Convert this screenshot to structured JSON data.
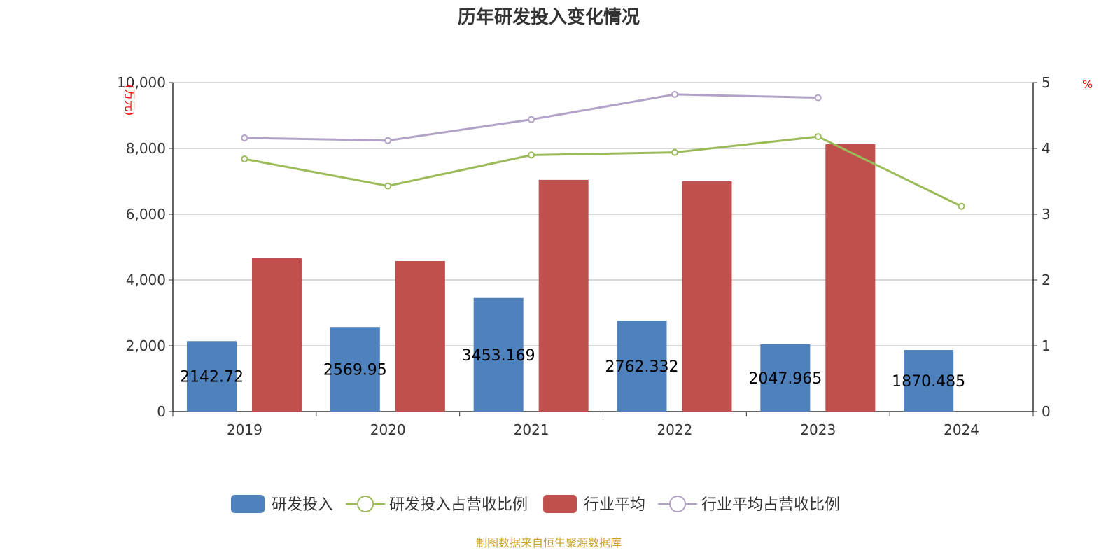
{
  "chart_data": {
    "type": "bar",
    "title": "历年研发投入变化情况",
    "source": "制图数据来自恒生聚源数据库",
    "categories": [
      "2019",
      "2020",
      "2021",
      "2022",
      "2023",
      "2024"
    ],
    "y_left": {
      "label": "(万元)",
      "range": [
        0,
        10000
      ],
      "ticks": [
        0,
        2000,
        4000,
        6000,
        8000,
        10000
      ],
      "tick_labels": [
        "0",
        "2,000",
        "4,000",
        "6,000",
        "8,000",
        "10,000"
      ]
    },
    "y_right": {
      "label": "%",
      "range": [
        0,
        5
      ],
      "ticks": [
        0,
        1,
        2,
        3,
        4,
        5
      ],
      "tick_labels": [
        "0",
        "1",
        "2",
        "3",
        "4",
        "5"
      ]
    },
    "grid": true,
    "legend_position": "bottom",
    "series": [
      {
        "name": "研发投入",
        "kind": "bar",
        "axis": "left",
        "color": "#4f81bd",
        "values": [
          2142.72,
          2569.95,
          3453.169,
          2762.332,
          2047.965,
          1870.485
        ],
        "labels": [
          "2142.72",
          "2569.95",
          "3453.169",
          "2762.332",
          "2047.965",
          "1870.485"
        ]
      },
      {
        "name": "研发投入占营收比例",
        "kind": "line",
        "axis": "right",
        "color": "#9bbb59",
        "values": [
          3.84,
          3.43,
          3.9,
          3.94,
          4.18,
          3.12
        ]
      },
      {
        "name": "行业平均",
        "kind": "bar",
        "axis": "left",
        "color": "#c0504d",
        "values": [
          4660,
          4575,
          7045,
          7000,
          8130,
          null
        ]
      },
      {
        "name": "行业平均占营收比例",
        "kind": "line",
        "axis": "right",
        "color": "#b3a2c7",
        "values": [
          4.16,
          4.12,
          4.44,
          4.82,
          4.77,
          null
        ]
      }
    ]
  }
}
